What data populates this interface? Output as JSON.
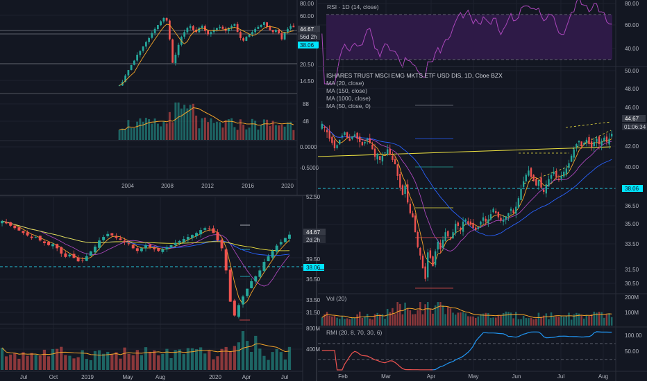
{
  "colors": {
    "background": "#131722",
    "border": "#2a2e39",
    "grid": "#1e222d",
    "up": "#26a69a",
    "down": "#ef5350",
    "text": "#b2b5be",
    "text_bright": "#d1d4dc",
    "price_tag": "#363a45",
    "support_tag": "#00e5ff",
    "support_line": "#26c6da",
    "ma_orange": "#f7a62a",
    "ma_blue": "#2962ff",
    "ma_purple": "#ab47bc",
    "ma_yellow": "#f0e442",
    "rsi_fill": "#2e1a47",
    "rmi_line": "#2196f3"
  },
  "panels": {
    "monthly": {
      "price_axis": [
        "80.00",
        "60.00",
        "20.50",
        "14.50"
      ],
      "tag_last": "44.67",
      "tag_countdown": "56d 2h",
      "tag_support": "38.06",
      "volume_axis": [
        "88",
        "48"
      ],
      "osc_axis": [
        "0.0000",
        "-0.5000"
      ],
      "time_axis": [
        "2004",
        "2008",
        "2012",
        "2016",
        "2020"
      ]
    },
    "weekly": {
      "price_axis": [
        "52.50",
        "39.50",
        "36.50",
        "33.50",
        "31.50"
      ],
      "tag_last": "44.67",
      "tag_countdown": "2d 2h",
      "tag_support": "38.06",
      "volume_axis": [
        "800M",
        "400M"
      ],
      "time_axis": [
        "Jul",
        "Oct",
        "2019",
        "May",
        "Aug",
        "2020",
        "Apr",
        "Jul"
      ]
    },
    "daily": {
      "rsi_label": "RSI · 1D (14, close)",
      "rsi_axis": [
        "80.00",
        "60.00",
        "40.00"
      ],
      "legend": [
        "ISHARES TRUST MSCI EMG MKTS ETF USD DIS, 1D, Cboe BZX",
        "MA (20, close)",
        "MA (150, close)",
        "MA (1000, close)",
        "MA (50, close, 0)"
      ],
      "price_axis": [
        "50.00",
        "48.00",
        "46.00",
        "42.00",
        "40.00",
        "36.50",
        "35.00",
        "33.50",
        "31.50",
        "30.50"
      ],
      "tag_last": "44.67",
      "tag_countdown": "01:06:34",
      "tag_support": "38.06",
      "vol_label": "Vol (20)",
      "vol_axis": [
        "200M",
        "100M"
      ],
      "rmi_label": "RMI (20, 8, 70, 30, 6)",
      "rmi_axis": [
        "100.00",
        "50.00"
      ],
      "time_axis": [
        "Feb",
        "Mar",
        "Apr",
        "May",
        "Jun",
        "Jul",
        "Aug"
      ]
    }
  },
  "chart_data": [
    {
      "type": "candlestick",
      "title": "",
      "timeframe": "1M",
      "x_ticks": [
        "2004",
        "2008",
        "2012",
        "2016",
        "2020"
      ],
      "ylim": [
        10,
        80
      ],
      "y_scale": "log",
      "last_price": 44.67,
      "support_level": 38.06,
      "closes": [
        12,
        13,
        15,
        17,
        19,
        21,
        24,
        26,
        29,
        32,
        35,
        39,
        43,
        47,
        51,
        55,
        52,
        34,
        20,
        24,
        30,
        36,
        40,
        44,
        46,
        42,
        40,
        44,
        46,
        41,
        38,
        40,
        42,
        44,
        45,
        43,
        41,
        44,
        46,
        48,
        40,
        35,
        33,
        36,
        38,
        40,
        43,
        45,
        47,
        50,
        45,
        42,
        40,
        42,
        39,
        34,
        40,
        43,
        46,
        44.67
      ],
      "volume_axis": [
        "88",
        "48"
      ],
      "oscillator_axis": [
        0.0,
        -0.5
      ]
    },
    {
      "type": "candlestick",
      "title": "",
      "timeframe": "1W",
      "x_ticks": [
        "Jul",
        "Oct",
        "2019",
        "May",
        "Aug",
        "2020",
        "Apr",
        "Jul"
      ],
      "ylim": [
        30,
        53
      ],
      "y_scale": "log",
      "last_price": 44.67,
      "support_level": 38.06,
      "closes": [
        47.5,
        47,
        46.5,
        46,
        45.5,
        45,
        44.5,
        44,
        44.2,
        43.5,
        43,
        42.6,
        42.8,
        42,
        41,
        40.4,
        40.8,
        40.2,
        39.6,
        39.8,
        40.5,
        41.4,
        42.3,
        43.5,
        44.2,
        44.8,
        44.5,
        44,
        43.6,
        43.2,
        42.8,
        42,
        41.5,
        42,
        42.6,
        42.2,
        41.8,
        41.5,
        41.8,
        42.2,
        42.6,
        43,
        43.4,
        43.8,
        44.2,
        44.6,
        45,
        45.6,
        46,
        45.8,
        45,
        43.5,
        42,
        38,
        33,
        31,
        32.5,
        33.8,
        35,
        36.2,
        37,
        38,
        39.5,
        40.5,
        41.5,
        42.5,
        43.2,
        44,
        44.67
      ],
      "volume_axis": [
        "800M",
        "400M"
      ]
    },
    {
      "type": "candlestick",
      "title": "ISHARES TRUST MSCI EMG MKTS ETF USD DIS, 1D, Cboe BZX",
      "timeframe": "1D",
      "x_ticks": [
        "Feb",
        "Mar",
        "Apr",
        "May",
        "Jun",
        "Jul",
        "Aug"
      ],
      "ylim": [
        30,
        51
      ],
      "last_price": 44.67,
      "support_level": 38.06,
      "closes": [
        45.6,
        45.2,
        44.8,
        44.2,
        43.8,
        43.3,
        43.6,
        44.1,
        44.5,
        44.8,
        44.3,
        44,
        44.4,
        44.6,
        44.2,
        43.9,
        43.6,
        43.9,
        44.2,
        43.8,
        43.2,
        42.5,
        42.8,
        42.2,
        42.6,
        42.9,
        43.2,
        42.7,
        42.2,
        41.8,
        40.7,
        39.6,
        38.9,
        39.8,
        38.2,
        37.2,
        36.8,
        35.4,
        34,
        33.2,
        32,
        31,
        33.5,
        33,
        32.2,
        33.6,
        34.5,
        33.8,
        34.7,
        35.4,
        35,
        34.8,
        35.4,
        36.2,
        36,
        35.6,
        36.4,
        36.6,
        36.2,
        36.1,
        35.8,
        35.6,
        35.9,
        36.4,
        36.8,
        36.4,
        36.6,
        37.1,
        37.6,
        37.2,
        36.8,
        36.5,
        36.6,
        36.9,
        37.2,
        37.6,
        37.2,
        37.8,
        38.6,
        39.5,
        40.2,
        40.8,
        41.2,
        40.6,
        40.2,
        39.8,
        40.3,
        39.6,
        39.2,
        39.9,
        40.4,
        40.8,
        41.1,
        40.6,
        40.3,
        40.7,
        41.1,
        41.4,
        41.9,
        42.6,
        43.2,
        43.7,
        44,
        43.5,
        43.8,
        44.1,
        43.7,
        43.4,
        43.9,
        44.2,
        43.7,
        44,
        44.3,
        43.9,
        44.2,
        44.67
      ],
      "moving_averages": [
        "MA (20, close)",
        "MA (150, close)",
        "MA (1000, close)",
        "MA (50, close, 0)"
      ],
      "rsi": {
        "label": "RSI · 1D (14, close)",
        "overbought": 70,
        "oversold": 30,
        "axis": [
          80,
          60,
          40
        ]
      },
      "volume": {
        "label": "Vol (20)",
        "axis": [
          "200M",
          "100M"
        ]
      },
      "rmi": {
        "label": "RMI (20, 8, 70, 30, 6)",
        "levels": [
          70,
          30
        ],
        "axis": [
          100,
          50
        ]
      }
    }
  ]
}
